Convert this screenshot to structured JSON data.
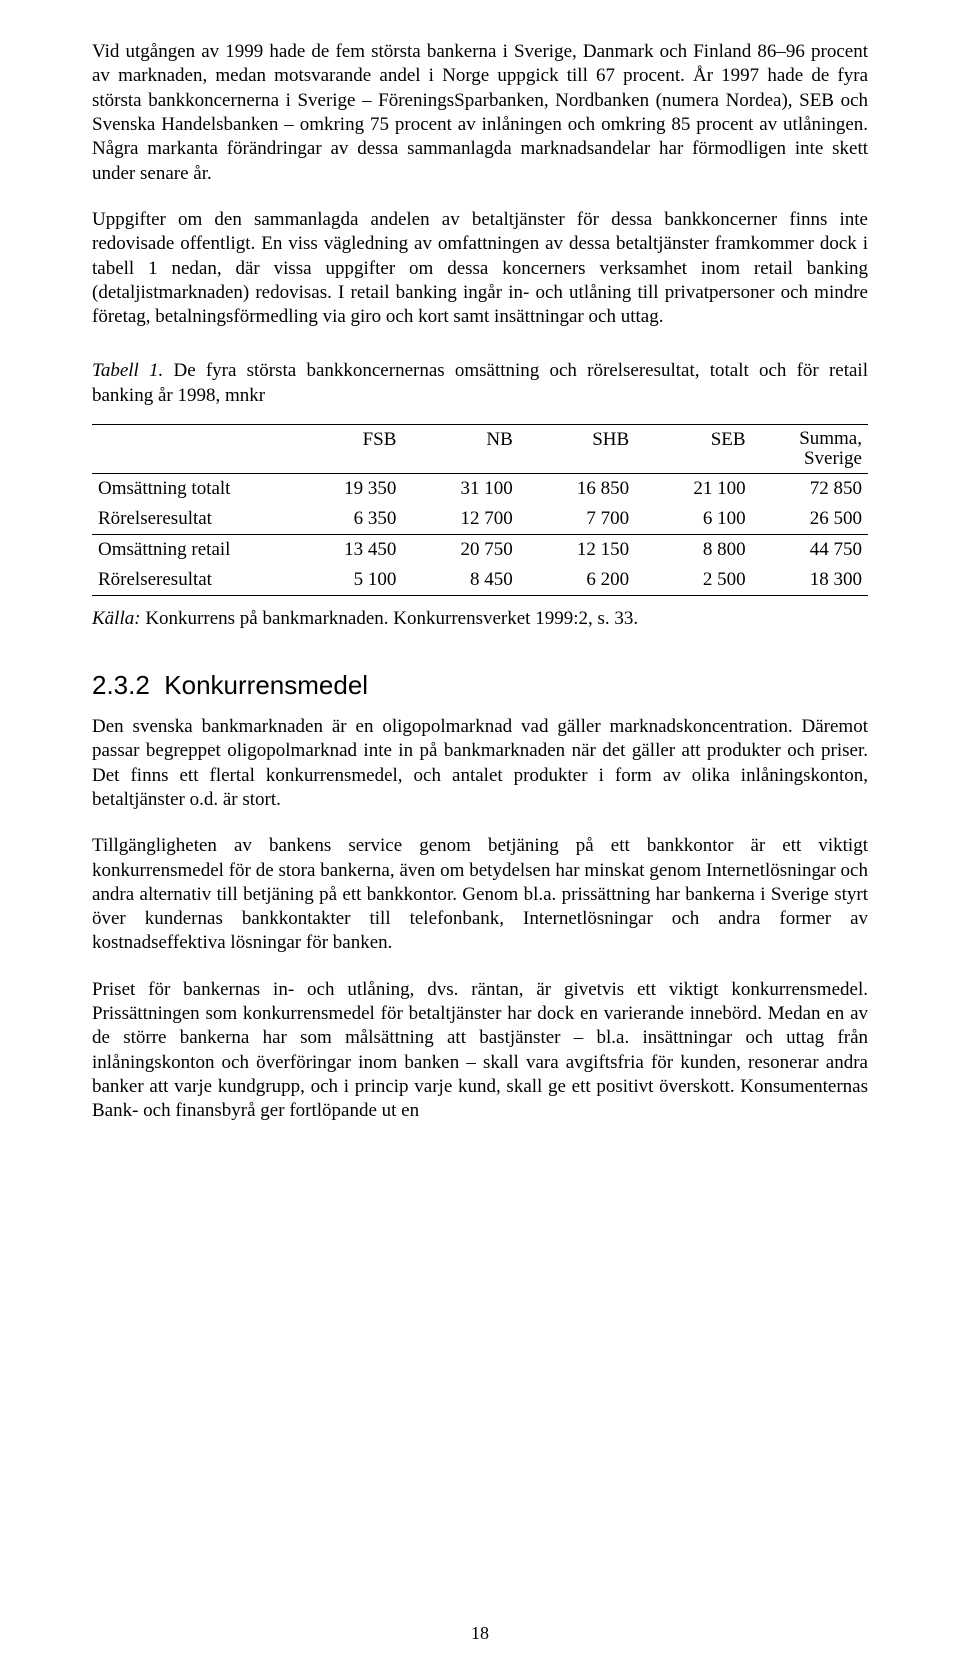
{
  "paragraphs": {
    "p1": "Vid utgången av 1999 hade de fem största bankerna i Sverige, Danmark och Finland 86–96 procent av marknaden, medan motsvarande andel i Norge uppgick till 67 procent. År 1997 hade de fyra största bankkoncernerna i Sverige – FöreningsSparbanken, Nord­banken (numera Nordea), SEB och Svenska Handelsbanken – omkring 75 procent av inlåningen och omkring 85 procent av utlåningen. Några markanta förändringar av dessa sammanlagda marknadsandelar har förmodligen inte skett under senare år.",
    "p2": "Uppgifter om den sammanlagda andelen av betaltjänster för dessa bankkoncerner finns inte redovisade offentligt. En viss vägledning av omfattningen av dessa betaltjänster framkommer dock i tabell 1 nedan, där vissa uppgifter om dessa koncerners verksamhet inom retail banking (detaljistmarknaden) redovisas. I retail banking ingår in- och utlåning till privatpersoner och mindre företag, betalningsförmedling via giro och kort samt insättningar och uttag.",
    "p3": "Den svenska bankmarknaden är en oligopolmarknad vad gäller marknadskoncentration. Däremot passar begreppet oligopolmarknad inte in på bankmarknaden när det gäller att produkter och priser. Det finns ett flertal konkurrensmedel, och antalet produkter i form av olika inlåningskonton, betaltjänster o.d. är stort.",
    "p4": "Tillgängligheten av bankens service genom betjäning på ett bankkontor är ett viktigt konkurrensmedel för de stora bankerna, även om betydelsen har minskat genom Internet­lösningar och andra alternativ till betjäning på ett bankkontor. Genom bl.a. prissättning har bankerna i Sverige styrt över kundernas bankkontakter till telefonbank, Internet­lösningar och andra former av kostnadseffektiva lösningar för banken.",
    "p5": "Priset för bankernas in- och utlåning, dvs. räntan, är givetvis ett viktigt konkurrensmedel. Prissättningen som konkurrensmedel för betaltjänster har dock en varierande innebörd. Medan en av de större bankerna har som målsättning att bastjänster – bl.a. insättningar och uttag från inlåningskonton och överföringar inom banken – skall vara avgiftsfria för kunden, resonerar andra banker att varje kundgrupp, och i princip varje kund, skall ge ett positivt överskott. Konsumenternas Bank- och finansbyrå ger fortlöpande ut en"
  },
  "tableCaption": {
    "label": "Tabell 1.",
    "text": " De fyra största bankkoncernernas omsättning och rörelseresultat, totalt och för retail banking år 1998, mnkr"
  },
  "table": {
    "columns": [
      "",
      "FSB",
      "NB",
      "SHB",
      "SEB",
      "Summa, Sverige"
    ],
    "rows": [
      [
        "Omsättning totalt",
        "19 350",
        "31 100",
        "16 850",
        "21 100",
        "72 850"
      ],
      [
        "Rörelseresultat",
        "6 350",
        "12 700",
        "7 700",
        "6 100",
        "26 500"
      ],
      [
        "Omsättning retail",
        "13 450",
        "20 750",
        "12 150",
        "8 800",
        "44 750"
      ],
      [
        "Rörelseresultat",
        "5 100",
        "8 450",
        "6 200",
        "2 500",
        "18 300"
      ]
    ],
    "sepAfterRow": 1,
    "colWidths": [
      "26%",
      "14%",
      "15%",
      "15%",
      "15%",
      "15%"
    ]
  },
  "source": {
    "label": "Källa:",
    "text": " Konkurrens på bankmarknaden. Konkurrensverket 1999:2, s. 33."
  },
  "section": {
    "number": "2.3.2",
    "title": "Konkurrensmedel"
  },
  "pageNumber": "18"
}
